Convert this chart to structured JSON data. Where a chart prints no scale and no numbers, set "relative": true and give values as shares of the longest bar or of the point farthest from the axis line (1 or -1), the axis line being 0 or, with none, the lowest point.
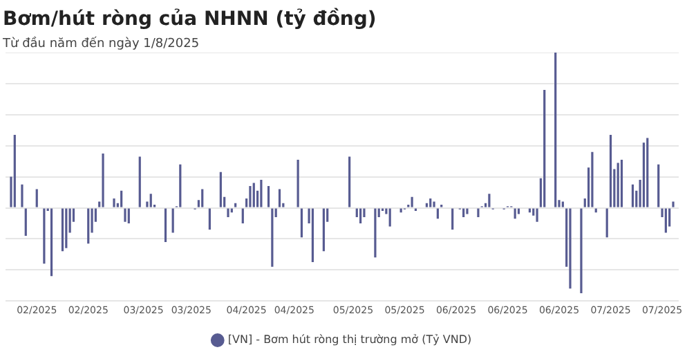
{
  "chart_data": {
    "type": "bar",
    "title": "Bơm/hút ròng của NHNN (tỷ đồng)",
    "subtitle": "Từ đầu năm đến ngày 1/8/2025",
    "relative": true,
    "grid": "y",
    "legend": "bottom",
    "marker": "circle",
    "categories": [
      null,
      null,
      null,
      null,
      null,
      null,
      null,
      null,
      "02/2025",
      null,
      null,
      null,
      null,
      null,
      null,
      null,
      null,
      null,
      null,
      null,
      null,
      null,
      "02/2025",
      null,
      null,
      null,
      null,
      null,
      null,
      null,
      null,
      null,
      null,
      null,
      null,
      null,
      null,
      "03/2025",
      null,
      null,
      null,
      null,
      null,
      null,
      null,
      null,
      null,
      null,
      null,
      null,
      "03/2025",
      null,
      null,
      null,
      null,
      null,
      null,
      null,
      null,
      null,
      null,
      null,
      null,
      null,
      null,
      "04/2025",
      null,
      null,
      null,
      null,
      null,
      null,
      null,
      null,
      null,
      null,
      null,
      null,
      "04/2025",
      null,
      null,
      null,
      null,
      null,
      null,
      null,
      null,
      null,
      null,
      null,
      null,
      null,
      null,
      null,
      "05/2025",
      null,
      null,
      null,
      null,
      null,
      null,
      null,
      null,
      null,
      null,
      null,
      null,
      null,
      "05/2025",
      null,
      null,
      null,
      null,
      null,
      null,
      null,
      null,
      null,
      null,
      null,
      null,
      null,
      "06/2025",
      null,
      null,
      null,
      null,
      null,
      null,
      null,
      null,
      null,
      null,
      null,
      null,
      null,
      "06/2025",
      null,
      null,
      null,
      null,
      null,
      null,
      null,
      null,
      null,
      null,
      null,
      null,
      null,
      "06/2025",
      null,
      null,
      null,
      null,
      null,
      null,
      null,
      null,
      null,
      null,
      null,
      null,
      null,
      "07/2025",
      null,
      null,
      null,
      null,
      null,
      null,
      null,
      null,
      null,
      null,
      null,
      null,
      null,
      "07/2025",
      null,
      null,
      null,
      null
    ],
    "series": [
      {
        "name": "[VN] - Bơm hút ròng thị trường mở (Tỷ VND)",
        "color": "#575b91",
        "values": [
          null,
          0.2,
          0.47,
          null,
          0.15,
          -0.18,
          null,
          null,
          0.12,
          null,
          -0.36,
          -0.02,
          -0.44,
          null,
          null,
          -0.28,
          -0.26,
          -0.16,
          -0.09,
          null,
          null,
          null,
          -0.23,
          -0.16,
          -0.09,
          0.04,
          0.35,
          null,
          null,
          0.06,
          0.03,
          0.11,
          -0.09,
          -0.1,
          null,
          null,
          0.33,
          null,
          0.04,
          0.09,
          0.02,
          null,
          null,
          -0.22,
          null,
          -0.16,
          0.01,
          0.28,
          null,
          null,
          null,
          -0.01,
          0.05,
          0.12,
          null,
          -0.14,
          null,
          null,
          0.23,
          0.07,
          -0.06,
          -0.03,
          0.03,
          null,
          -0.1,
          0.06,
          0.14,
          0.16,
          0.11,
          0.18,
          null,
          0.14,
          -0.38,
          -0.06,
          0.12,
          0.03,
          null,
          null,
          null,
          0.31,
          -0.19,
          null,
          -0.1,
          -0.35,
          null,
          null,
          -0.28,
          -0.09,
          null,
          null,
          null,
          null,
          null,
          0.33,
          null,
          -0.06,
          -0.1,
          -0.06,
          null,
          null,
          -0.32,
          -0.06,
          -0.02,
          -0.04,
          -0.12,
          null,
          null,
          -0.03,
          -0.01,
          0.02,
          0.07,
          -0.02,
          null,
          null,
          0.03,
          0.06,
          0.04,
          -0.07,
          0.02,
          null,
          null,
          -0.14,
          null,
          -0.01,
          -0.06,
          -0.04,
          null,
          null,
          -0.06,
          0.01,
          0.03,
          0.09,
          -0.01,
          null,
          null,
          -0.01,
          0.01,
          0.01,
          -0.07,
          -0.04,
          null,
          null,
          -0.03,
          -0.05,
          -0.09,
          0.19,
          0.76,
          null,
          null,
          1,
          0.05,
          0.04,
          -0.38,
          -0.52,
          null,
          null,
          -0.55,
          0.06,
          0.26,
          0.36,
          -0.03,
          null,
          null,
          -0.19,
          0.47,
          0.25,
          0.29,
          0.31,
          null,
          null,
          0.15,
          0.11,
          0.18,
          0.42,
          0.45,
          null,
          null,
          0.28,
          -0.06,
          -0.16,
          -0.12,
          0.04,
          null
        ]
      }
    ]
  }
}
